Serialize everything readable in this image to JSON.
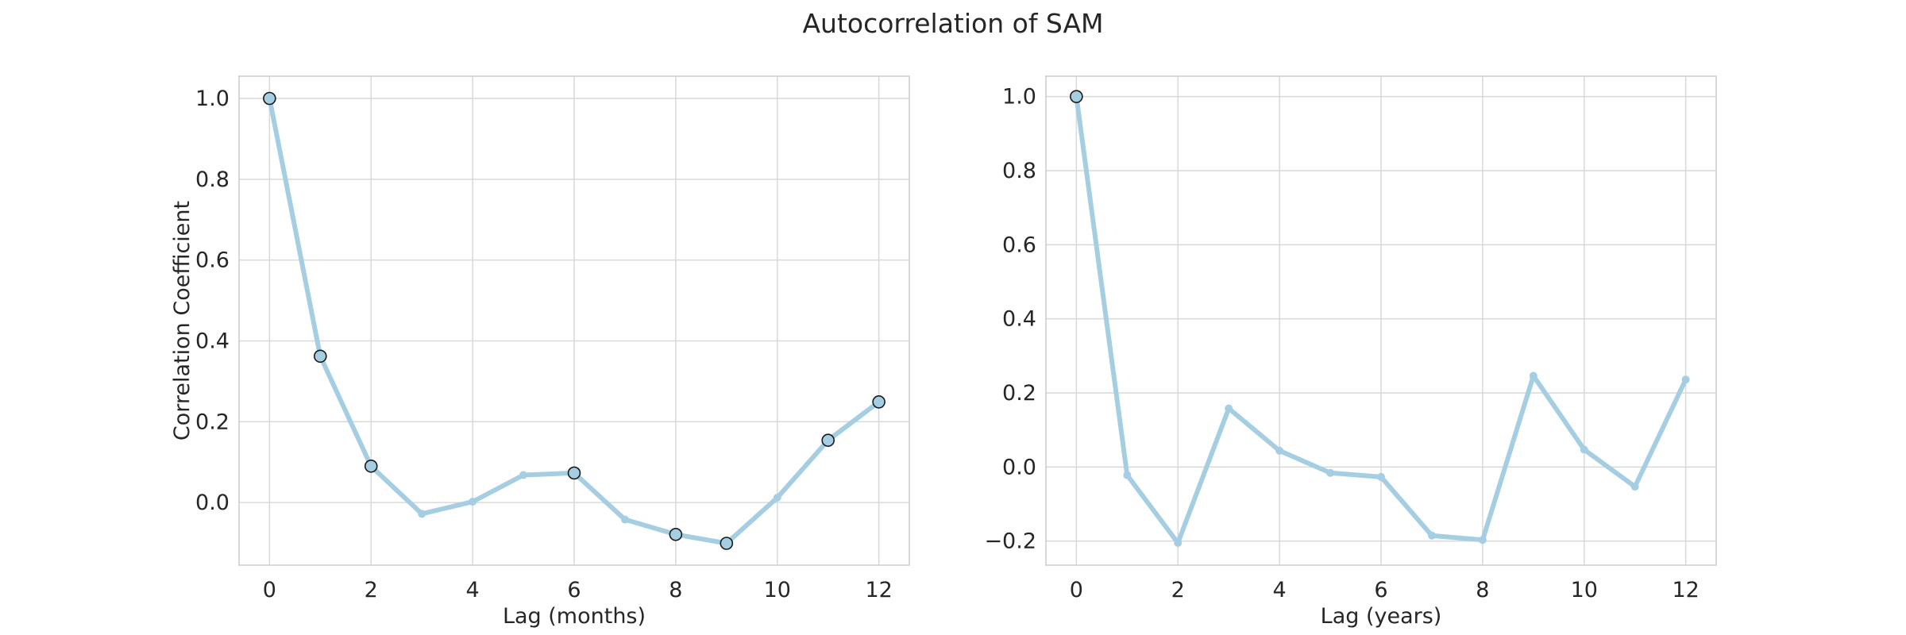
{
  "figure": {
    "suptitle": "Autocorrelation of SAM"
  },
  "chart_data": [
    {
      "type": "line",
      "xlabel": "Lag (months)",
      "ylabel": "Correlation Coefficient",
      "xlim": [
        -0.6,
        12.6
      ],
      "ylim": [
        -0.155,
        1.055
      ],
      "xticks": [
        0,
        2,
        4,
        6,
        8,
        10,
        12
      ],
      "yticks": [
        0.0,
        0.2,
        0.4,
        0.6,
        0.8,
        1.0
      ],
      "ytick_labels": [
        "0.0",
        "0.2",
        "0.4",
        "0.6",
        "0.8",
        "1.0"
      ],
      "grid": true,
      "line_color": "#a6cee3",
      "marker_edge_color": "#1a1a1a",
      "series": [
        {
          "x": [
            0,
            1,
            2,
            3,
            4,
            5,
            6,
            7,
            8,
            9,
            10,
            11,
            12
          ],
          "y": [
            1.0,
            0.362,
            0.09,
            -0.028,
            0.002,
            0.068,
            0.073,
            -0.042,
            -0.079,
            -0.101,
            0.012,
            0.154,
            0.249
          ],
          "highlighted_x": [
            0,
            1,
            2,
            6,
            8,
            9,
            11,
            12
          ]
        }
      ]
    },
    {
      "type": "line",
      "xlabel": "Lag (years)",
      "ylabel": "",
      "xlim": [
        -0.6,
        12.6
      ],
      "ylim": [
        -0.265,
        1.055
      ],
      "xticks": [
        0,
        2,
        4,
        6,
        8,
        10,
        12
      ],
      "yticks": [
        -0.2,
        0.0,
        0.2,
        0.4,
        0.6,
        0.8,
        1.0
      ],
      "ytick_labels": [
        "−0.2",
        "0.0",
        "0.2",
        "0.4",
        "0.6",
        "0.8",
        "1.0"
      ],
      "grid": true,
      "line_color": "#a6cee3",
      "marker_edge_color": "#1a1a1a",
      "series": [
        {
          "x": [
            0,
            1,
            2,
            3,
            4,
            5,
            6,
            7,
            8,
            9,
            10,
            11,
            12
          ],
          "y": [
            1.0,
            -0.022,
            -0.205,
            0.158,
            0.044,
            -0.016,
            -0.027,
            -0.185,
            -0.197,
            0.246,
            0.047,
            -0.053,
            0.236
          ],
          "highlighted_x": [
            0
          ]
        }
      ]
    }
  ]
}
